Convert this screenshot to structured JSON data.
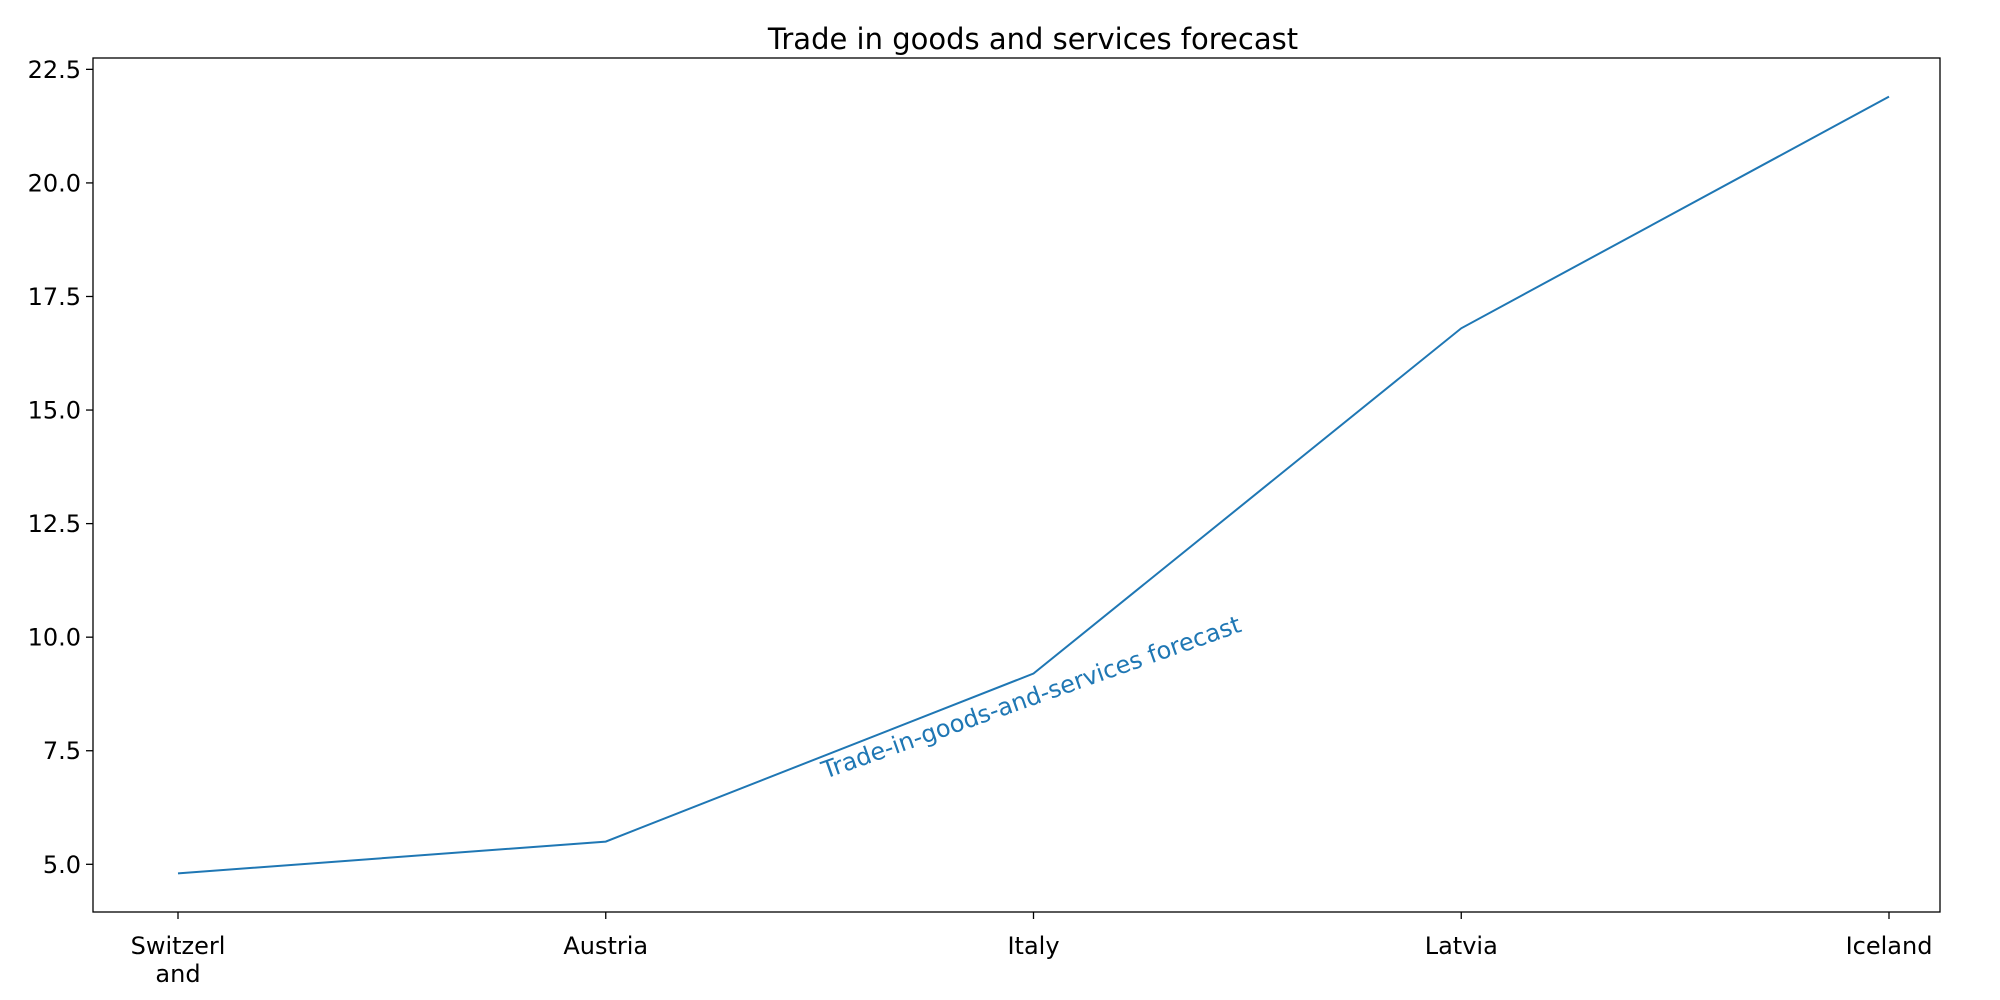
{
  "chart_data": {
    "type": "line",
    "title": "Trade in goods and services forecast",
    "xlabel": "",
    "ylabel": "",
    "categories": [
      "Switzerl\nand",
      "Austria",
      "Italy",
      "Latvia",
      "Iceland"
    ],
    "series": [
      {
        "name": "Trade-in-goods-and-services forecast",
        "values": [
          4.8,
          5.5,
          9.2,
          16.8,
          21.9
        ],
        "color": "#1f77b4"
      }
    ],
    "ylim": [
      3.95,
      22.75
    ],
    "yticks": [
      5.0,
      7.5,
      10.0,
      12.5,
      15.0,
      17.5,
      20.0,
      22.5
    ],
    "ytick_labels": [
      "5.0",
      "7.5",
      "10.0",
      "12.5",
      "15.0",
      "17.5",
      "20.0",
      "22.5"
    ],
    "grid": false,
    "legend": "none",
    "series_label_placement": "inline along line near Italy"
  }
}
